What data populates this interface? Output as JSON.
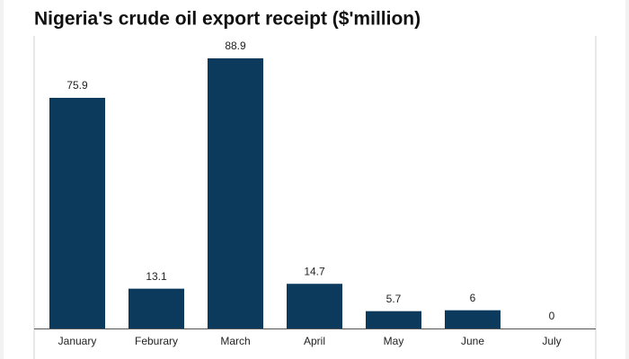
{
  "chart_data": {
    "type": "bar",
    "title": "Nigeria's crude oil export receipt ($'million)",
    "categories": [
      "January",
      "Feburary",
      "March",
      "April",
      "May",
      "June",
      "July"
    ],
    "values": [
      75.9,
      13.1,
      88.9,
      14.7,
      5.7,
      6,
      0
    ],
    "color": "#0b3a5c"
  }
}
